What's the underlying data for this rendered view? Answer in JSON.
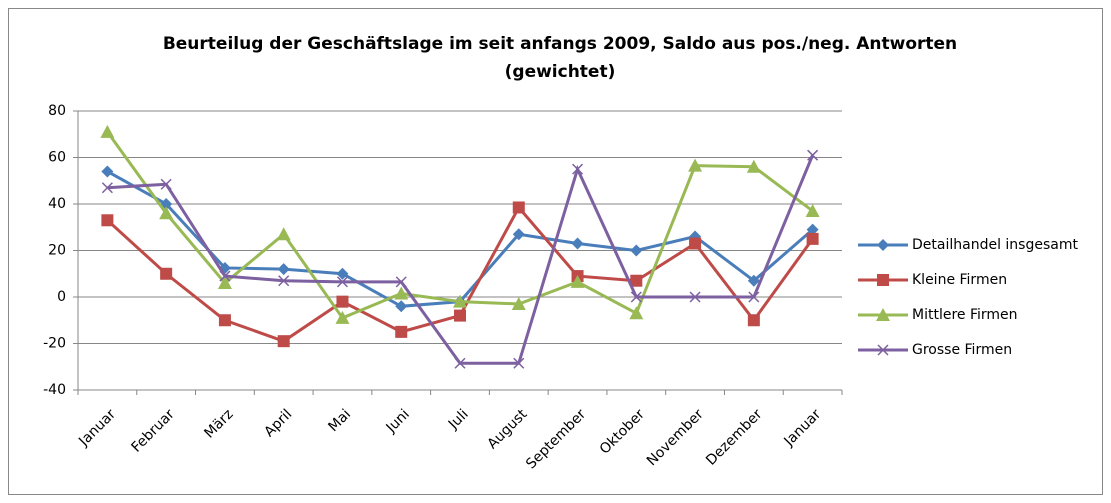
{
  "chart_data": {
    "type": "line",
    "title": [
      "Beurteilug der Geschäftslage im seit anfangs 2009, Saldo aus pos./neg. Antworten",
      "(gewichtet)"
    ],
    "categories": [
      "Januar",
      "Februar",
      "März",
      "April",
      "Mai",
      "Juni",
      "Juli",
      "August",
      "September",
      "Oktober",
      "November",
      "Dezember",
      "Januar"
    ],
    "series": [
      {
        "name": "Detailhandel insgesamt",
        "color": "#4a7ebb",
        "marker": "diamond",
        "values": [
          54,
          40,
          12.5,
          12,
          10,
          -4,
          -2,
          27,
          23,
          20,
          26,
          7,
          29
        ]
      },
      {
        "name": "Kleine Firmen",
        "color": "#be4b48",
        "marker": "square",
        "values": [
          33,
          10,
          -10,
          -19,
          -2,
          -15,
          -8,
          38.5,
          9,
          7,
          23,
          -10,
          25
        ]
      },
      {
        "name": "Mittlere Firmen",
        "color": "#98b954",
        "marker": "triangle",
        "values": [
          71,
          36,
          6,
          27,
          -9,
          1.5,
          -2,
          -3,
          6.5,
          -7,
          56.5,
          56,
          37
        ]
      },
      {
        "name": "Grosse Firmen",
        "color": "#7d60a0",
        "marker": "x",
        "values": [
          47,
          48.5,
          9,
          7,
          6.5,
          6.5,
          -28.5,
          -28.5,
          55,
          0,
          0,
          0,
          61
        ]
      }
    ],
    "ylim": [
      -40,
      80
    ],
    "yticks": [
      -40,
      -20,
      0,
      20,
      40,
      60,
      80
    ],
    "grid": true,
    "legend": "right"
  }
}
